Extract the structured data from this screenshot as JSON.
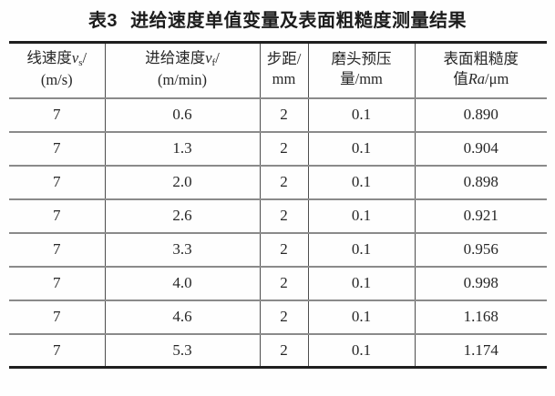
{
  "caption": {
    "label": "表3",
    "text": "进给速度单值变量及表面粗糙度测量结果"
  },
  "table": {
    "headers": [
      {
        "prefix": "线速度",
        "symbol": "v",
        "subscript": "s",
        "slash": "/",
        "unit": "(m/s)"
      },
      {
        "prefix": "进给速度",
        "symbol": "v",
        "subscript": "f",
        "slash": "/",
        "unit": "(m/min)"
      },
      {
        "line1": "步距/",
        "line2": "mm"
      },
      {
        "line1": "磨头预压",
        "line2": "量/mm"
      },
      {
        "line1": "表面粗糙度",
        "prefix2": "值",
        "symbol": "Ra",
        "unit": "/μm"
      }
    ],
    "rows": [
      [
        "7",
        "0.6",
        "2",
        "0.1",
        "0.890"
      ],
      [
        "7",
        "1.3",
        "2",
        "0.1",
        "0.904"
      ],
      [
        "7",
        "2.0",
        "2",
        "0.1",
        "0.898"
      ],
      [
        "7",
        "2.6",
        "2",
        "0.1",
        "0.921"
      ],
      [
        "7",
        "3.3",
        "2",
        "0.1",
        "0.956"
      ],
      [
        "7",
        "4.0",
        "2",
        "0.1",
        "0.998"
      ],
      [
        "7",
        "4.6",
        "2",
        "0.1",
        "1.168"
      ],
      [
        "7",
        "5.3",
        "2",
        "0.1",
        "1.174"
      ]
    ]
  },
  "colors": {
    "text": "#262626",
    "top_bottom_border": "#1f1f1f",
    "row_separator": "#8a8a8a",
    "column_line": "#4d4d4d",
    "background": "#fefefe"
  }
}
